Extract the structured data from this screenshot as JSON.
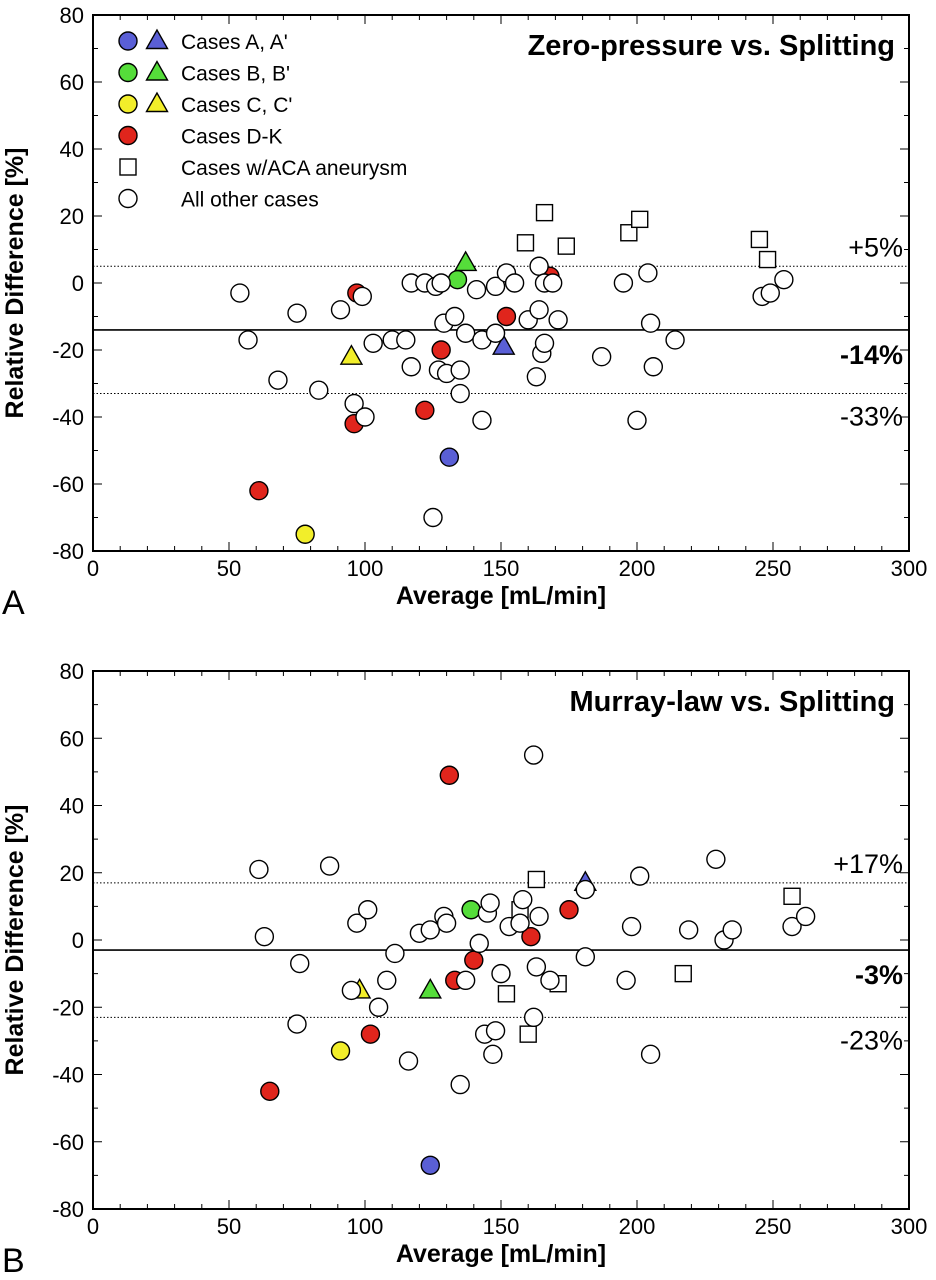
{
  "legend": {
    "items": [
      {
        "label": "Cases A, A'",
        "color": "#5a5fd6",
        "markers": [
          "circle",
          "triangle"
        ]
      },
      {
        "label": "Cases B, B'",
        "color": "#55dd3a",
        "markers": [
          "circle",
          "triangle"
        ]
      },
      {
        "label": "Cases C, C'",
        "color": "#f2ee2a",
        "markers": [
          "circle",
          "triangle"
        ]
      },
      {
        "label": "Cases D-K",
        "color": "#e0251c",
        "markers": [
          "circle"
        ]
      },
      {
        "label": "Cases w/ACA aneurysm",
        "color": "#ffffff",
        "markers": [
          "square"
        ]
      },
      {
        "label": "All other cases",
        "color": "#ffffff",
        "markers": [
          "circle"
        ]
      }
    ]
  },
  "chart_data": [
    {
      "type": "scatter",
      "panel_letter": "A",
      "title": "Zero-pressure vs. Splitting",
      "xlabel": "Average [mL/min]",
      "ylabel": "Relative Difference [%]",
      "xlim": [
        0,
        300
      ],
      "ylim": [
        -80,
        80
      ],
      "xticks": [
        0,
        50,
        100,
        150,
        200,
        250,
        300
      ],
      "yticks": [
        -80,
        -60,
        -40,
        -20,
        0,
        20,
        40,
        60,
        80
      ],
      "grid": false,
      "legend_position": "top-left",
      "reference_lines": [
        {
          "y": 5,
          "label": "+5%",
          "style": "dotted",
          "bold": false
        },
        {
          "y": -14,
          "label": "-14%",
          "style": "solid",
          "bold": true
        },
        {
          "y": -33,
          "label": "-33%",
          "style": "dotted",
          "bold": false
        }
      ],
      "series": [
        {
          "name": "Cases A, A'",
          "marker": "circle",
          "color": "#5a5fd6",
          "points": [
            [
              131,
              -52
            ]
          ]
        },
        {
          "name": "Cases A, A'",
          "marker": "triangle",
          "color": "#5a5fd6",
          "points": [
            [
              151,
              -19
            ]
          ]
        },
        {
          "name": "Cases B, B'",
          "marker": "circle",
          "color": "#55dd3a",
          "points": [
            [
              134,
              1
            ]
          ]
        },
        {
          "name": "Cases B, B'",
          "marker": "triangle",
          "color": "#55dd3a",
          "points": [
            [
              137,
              6
            ]
          ]
        },
        {
          "name": "Cases C, C'",
          "marker": "circle",
          "color": "#f2ee2a",
          "points": [
            [
              78,
              -75
            ]
          ]
        },
        {
          "name": "Cases C, C'",
          "marker": "triangle",
          "color": "#f2ee2a",
          "points": [
            [
              95,
              -22
            ]
          ]
        },
        {
          "name": "Cases D-K",
          "marker": "circle",
          "color": "#e0251c",
          "points": [
            [
              61,
              -62
            ],
            [
              96,
              -42
            ],
            [
              97,
              -3
            ],
            [
              122,
              -38
            ],
            [
              128,
              -20
            ],
            [
              152,
              -10
            ],
            [
              168,
              2
            ]
          ]
        },
        {
          "name": "Cases w/ACA aneurysm",
          "marker": "square",
          "color": "#ffffff",
          "points": [
            [
              159,
              12
            ],
            [
              166,
              21
            ],
            [
              174,
              11
            ],
            [
              197,
              15
            ],
            [
              201,
              19
            ],
            [
              245,
              13
            ],
            [
              248,
              7
            ]
          ]
        },
        {
          "name": "All other cases",
          "marker": "circle",
          "color": "#ffffff",
          "points": [
            [
              54,
              -3
            ],
            [
              57,
              -17
            ],
            [
              68,
              -29
            ],
            [
              75,
              -9
            ],
            [
              83,
              -32
            ],
            [
              91,
              -8
            ],
            [
              96,
              -36
            ],
            [
              99,
              -4
            ],
            [
              100,
              -40
            ],
            [
              103,
              -18
            ],
            [
              110,
              -17
            ],
            [
              115,
              -17
            ],
            [
              117,
              0
            ],
            [
              117,
              -25
            ],
            [
              122,
              0
            ],
            [
              125,
              -70
            ],
            [
              126,
              -1
            ],
            [
              127,
              -26
            ],
            [
              128,
              0
            ],
            [
              129,
              -12
            ],
            [
              130,
              -27
            ],
            [
              133,
              -10
            ],
            [
              135,
              -33
            ],
            [
              135,
              -26
            ],
            [
              137,
              -15
            ],
            [
              141,
              -2
            ],
            [
              143,
              -17
            ],
            [
              143,
              -41
            ],
            [
              148,
              -15
            ],
            [
              148,
              -1
            ],
            [
              152,
              3
            ],
            [
              155,
              0
            ],
            [
              160,
              -11
            ],
            [
              163,
              -28
            ],
            [
              164,
              -8
            ],
            [
              164,
              5
            ],
            [
              165,
              -21
            ],
            [
              166,
              -18
            ],
            [
              166,
              0
            ],
            [
              169,
              0
            ],
            [
              171,
              -11
            ],
            [
              187,
              -22
            ],
            [
              195,
              0
            ],
            [
              200,
              -41
            ],
            [
              204,
              3
            ],
            [
              205,
              -12
            ],
            [
              206,
              -25
            ],
            [
              214,
              -17
            ],
            [
              246,
              -4
            ],
            [
              249,
              -3
            ],
            [
              254,
              1
            ]
          ]
        }
      ]
    },
    {
      "type": "scatter",
      "panel_letter": "B",
      "title": "Murray-law vs. Splitting",
      "xlabel": "Average [mL/min]",
      "ylabel": "Relative Difference [%]",
      "xlim": [
        0,
        300
      ],
      "ylim": [
        -80,
        80
      ],
      "xticks": [
        0,
        50,
        100,
        150,
        200,
        250,
        300
      ],
      "yticks": [
        -80,
        -60,
        -40,
        -20,
        0,
        20,
        40,
        60,
        80
      ],
      "grid": false,
      "reference_lines": [
        {
          "y": 17,
          "label": "+17%",
          "style": "dotted",
          "bold": false
        },
        {
          "y": -3,
          "label": "-3%",
          "style": "solid",
          "bold": true
        },
        {
          "y": -23,
          "label": "-23%",
          "style": "dotted",
          "bold": false
        }
      ],
      "series": [
        {
          "name": "Cases A, A'",
          "marker": "circle",
          "color": "#5a5fd6",
          "points": [
            [
              124,
              -67
            ]
          ]
        },
        {
          "name": "Cases A, A'",
          "marker": "triangle",
          "color": "#5a5fd6",
          "points": [
            [
              181,
              17
            ]
          ]
        },
        {
          "name": "Cases B, B'",
          "marker": "circle",
          "color": "#55dd3a",
          "points": [
            [
              139,
              9
            ]
          ]
        },
        {
          "name": "Cases B, B'",
          "marker": "triangle",
          "color": "#55dd3a",
          "points": [
            [
              124,
              -15
            ]
          ]
        },
        {
          "name": "Cases C, C'",
          "marker": "circle",
          "color": "#f2ee2a",
          "points": [
            [
              91,
              -33
            ]
          ]
        },
        {
          "name": "Cases C, C'",
          "marker": "triangle",
          "color": "#f2ee2a",
          "points": [
            [
              98,
              -15
            ]
          ]
        },
        {
          "name": "Cases D-K",
          "marker": "circle",
          "color": "#e0251c",
          "points": [
            [
              65,
              -45
            ],
            [
              102,
              -28
            ],
            [
              131,
              49
            ],
            [
              133,
              -12
            ],
            [
              140,
              -6
            ],
            [
              161,
              1
            ],
            [
              175,
              9
            ]
          ]
        },
        {
          "name": "Cases w/ACA aneurysm",
          "marker": "square",
          "color": "#ffffff",
          "points": [
            [
              152,
              -16
            ],
            [
              157,
              9
            ],
            [
              160,
              -28
            ],
            [
              163,
              18
            ],
            [
              171,
              -13
            ],
            [
              217,
              -10
            ],
            [
              257,
              13
            ]
          ]
        },
        {
          "name": "All other cases",
          "marker": "circle",
          "color": "#ffffff",
          "points": [
            [
              61,
              21
            ],
            [
              63,
              1
            ],
            [
              75,
              -25
            ],
            [
              76,
              -7
            ],
            [
              87,
              22
            ],
            [
              95,
              -15
            ],
            [
              97,
              5
            ],
            [
              101,
              9
            ],
            [
              105,
              -20
            ],
            [
              108,
              -12
            ],
            [
              111,
              -4
            ],
            [
              116,
              -36
            ],
            [
              120,
              2
            ],
            [
              124,
              3
            ],
            [
              129,
              7
            ],
            [
              130,
              5
            ],
            [
              135,
              -43
            ],
            [
              137,
              -12
            ],
            [
              142,
              -1
            ],
            [
              144,
              -28
            ],
            [
              145,
              8
            ],
            [
              146,
              11
            ],
            [
              147,
              -34
            ],
            [
              148,
              -27
            ],
            [
              150,
              -10
            ],
            [
              153,
              4
            ],
            [
              157,
              5
            ],
            [
              158,
              12
            ],
            [
              162,
              -23
            ],
            [
              162,
              55
            ],
            [
              163,
              -8
            ],
            [
              164,
              7
            ],
            [
              168,
              -12
            ],
            [
              181,
              -5
            ],
            [
              181,
              15
            ],
            [
              196,
              -12
            ],
            [
              198,
              4
            ],
            [
              201,
              19
            ],
            [
              205,
              -34
            ],
            [
              219,
              3
            ],
            [
              229,
              24
            ],
            [
              232,
              0
            ],
            [
              235,
              3
            ],
            [
              257,
              4
            ],
            [
              262,
              7
            ]
          ]
        }
      ]
    }
  ]
}
